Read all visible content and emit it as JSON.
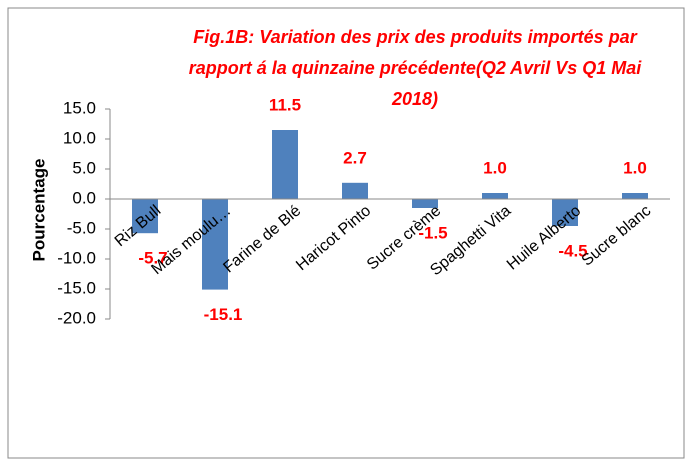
{
  "chart_data": {
    "type": "bar",
    "title": "Fig.1B: Variation des prix des produits importés par rapport á la quinzaine précédente(Q2 Avril Vs Q1 Mai 2018)",
    "y_label": "Pourcentage",
    "categories": [
      "Riz Bull",
      "Mais moulu…",
      "Farine de Blé",
      "Haricot  Pinto",
      "Sucre crème",
      "Spaghetti Vita",
      "Huile Alberto",
      "Sucre blanc"
    ],
    "values": [
      -5.7,
      -15.1,
      11.5,
      2.7,
      -1.5,
      1.0,
      -4.5,
      1.0
    ],
    "value_labels": [
      "-5.7",
      "-15.1",
      "11.5",
      "2.7",
      "-1.5",
      "1.0",
      "-4.5",
      "1.0"
    ],
    "color": "#4f81bd",
    "label_color": "#ff0000",
    "ylim": [
      -20,
      15
    ],
    "yticks": [
      {
        "value": -20,
        "label": "-20.0"
      },
      {
        "value": -15,
        "label": "-15.0"
      },
      {
        "value": -10,
        "label": "-10.0"
      },
      {
        "value": -5,
        "label": "-5.0"
      },
      {
        "value": 0,
        "label": "0.0"
      },
      {
        "value": 5,
        "label": "5.0"
      },
      {
        "value": 10,
        "label": "10.0"
      },
      {
        "value": 15,
        "label": "15.0"
      }
    ],
    "grid": false
  }
}
